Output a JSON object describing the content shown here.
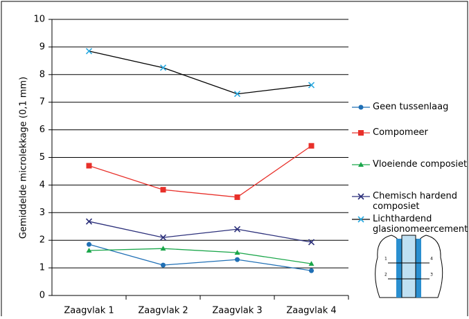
{
  "chart_data": {
    "type": "line",
    "y_label": "Gemiddelde microlekkage (0,1 mm)",
    "categories": [
      "Zaagvlak 1",
      "Zaagvlak 2",
      "Zaagvlak 3",
      "Zaagvlak 4"
    ],
    "series": [
      {
        "name": "Geen tussenlaag",
        "color": "#1f6fb5",
        "marker": "circle",
        "values": [
          1.85,
          1.1,
          1.3,
          0.9
        ]
      },
      {
        "name": "Compomeer",
        "color": "#e8302a",
        "marker": "square",
        "values": [
          4.7,
          3.83,
          3.56,
          5.42
        ]
      },
      {
        "name": "Vloeiende composiet",
        "color": "#1aa64a",
        "marker": "triangle",
        "values": [
          1.63,
          1.7,
          1.55,
          1.15
        ]
      },
      {
        "name": "Chemisch hardend composiet",
        "color": "#2b2f7a",
        "marker": "x",
        "values": [
          2.68,
          2.1,
          2.4,
          1.93
        ]
      },
      {
        "name": "Lichthardend glasionomeercement",
        "color": "#29a9e0",
        "line_color": "#000000",
        "marker": "x",
        "values": [
          8.85,
          8.25,
          7.3,
          7.62
        ]
      }
    ],
    "ylim": [
      0,
      10
    ],
    "yticks": [
      0,
      1,
      2,
      3,
      4,
      5,
      6,
      7,
      8,
      9,
      10
    ],
    "grid": true,
    "diagram_labels": [
      "1",
      "2",
      "3",
      "4"
    ]
  }
}
